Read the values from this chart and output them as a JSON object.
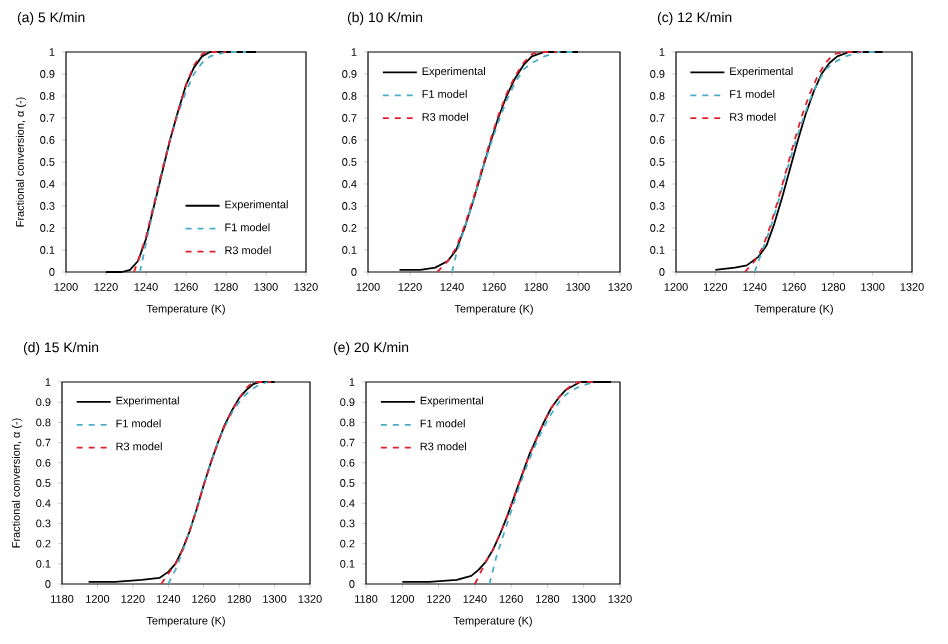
{
  "chart_data": [
    {
      "type": "line",
      "title": "(a) 5 K/min",
      "xlabel": "Temperature (K)",
      "ylabel": "Fractional conversion, α (-)",
      "xlim": [
        1200,
        1320
      ],
      "xticks": [
        1200,
        1220,
        1240,
        1260,
        1280,
        1300,
        1320
      ],
      "ylim": [
        0,
        1
      ],
      "yticks": [
        0,
        0.1,
        0.2,
        0.3,
        0.4,
        0.5,
        0.6,
        0.7,
        0.8,
        0.9,
        1
      ],
      "legend": "bottom right",
      "series": [
        {
          "name": "Experimental",
          "color": "#000000",
          "line_style": "solid",
          "x": [
            1220,
            1228,
            1232,
            1236,
            1240,
            1244,
            1248,
            1252,
            1256,
            1260,
            1264,
            1268,
            1272,
            1295
          ],
          "values": [
            0,
            0,
            0.01,
            0.05,
            0.15,
            0.3,
            0.45,
            0.6,
            0.73,
            0.85,
            0.93,
            0.98,
            1,
            1
          ]
        },
        {
          "name": "F1 model",
          "color": "#4bacc6",
          "line_style": "dashed",
          "x": [
            1237,
            1240,
            1244,
            1248,
            1252,
            1256,
            1260,
            1264,
            1268,
            1272,
            1280,
            1290
          ],
          "values": [
            0,
            0.13,
            0.3,
            0.46,
            0.6,
            0.72,
            0.82,
            0.9,
            0.95,
            0.98,
            1,
            1
          ]
        },
        {
          "name": "R3 model",
          "color": "#e0202e",
          "line_style": "dashed",
          "x": [
            1234,
            1236,
            1240,
            1244,
            1248,
            1252,
            1256,
            1260,
            1264,
            1268,
            1270,
            1280
          ],
          "values": [
            0,
            0.05,
            0.16,
            0.31,
            0.46,
            0.6,
            0.73,
            0.85,
            0.94,
            0.99,
            1,
            1
          ]
        }
      ]
    },
    {
      "type": "line",
      "title": "(b) 10 K/min",
      "xlabel": "Temperature (K)",
      "xlim": [
        1200,
        1320
      ],
      "xticks": [
        1200,
        1220,
        1240,
        1260,
        1280,
        1300,
        1320
      ],
      "ylim": [
        0,
        1
      ],
      "yticks": [
        0,
        0.1,
        0.2,
        0.3,
        0.4,
        0.5,
        0.6,
        0.7,
        0.8,
        0.9,
        1
      ],
      "legend": "top left",
      "series": [
        {
          "name": "Experimental",
          "color": "#000000",
          "line_style": "solid",
          "x": [
            1215,
            1225,
            1232,
            1238,
            1242,
            1246,
            1250,
            1254,
            1258,
            1262,
            1266,
            1270,
            1274,
            1278,
            1284,
            1300
          ],
          "values": [
            0.01,
            0.01,
            0.02,
            0.05,
            0.1,
            0.2,
            0.32,
            0.45,
            0.58,
            0.7,
            0.8,
            0.88,
            0.94,
            0.98,
            1,
            1
          ]
        },
        {
          "name": "F1 model",
          "color": "#4bacc6",
          "line_style": "dashed",
          "x": [
            1240,
            1242,
            1246,
            1250,
            1254,
            1258,
            1262,
            1266,
            1270,
            1274,
            1278,
            1284,
            1290,
            1298
          ],
          "values": [
            0,
            0.08,
            0.2,
            0.32,
            0.45,
            0.57,
            0.68,
            0.78,
            0.86,
            0.92,
            0.95,
            0.98,
            1,
            1
          ]
        },
        {
          "name": "R3 model",
          "color": "#e0202e",
          "line_style": "dashed",
          "x": [
            1233,
            1238,
            1242,
            1246,
            1250,
            1254,
            1258,
            1262,
            1266,
            1270,
            1274,
            1278,
            1282,
            1290
          ],
          "values": [
            0,
            0.05,
            0.11,
            0.21,
            0.33,
            0.46,
            0.59,
            0.71,
            0.81,
            0.89,
            0.95,
            0.99,
            1,
            1
          ]
        }
      ]
    },
    {
      "type": "line",
      "title": "(c) 12 K/min",
      "xlabel": "Temperature (K)",
      "xlim": [
        1200,
        1320
      ],
      "xticks": [
        1200,
        1220,
        1240,
        1260,
        1280,
        1300,
        1320
      ],
      "ylim": [
        0,
        1
      ],
      "yticks": [
        0,
        0.1,
        0.2,
        0.3,
        0.4,
        0.5,
        0.6,
        0.7,
        0.8,
        0.9,
        1
      ],
      "legend": "top left",
      "series": [
        {
          "name": "Experimental",
          "color": "#000000",
          "line_style": "solid",
          "x": [
            1220,
            1230,
            1236,
            1242,
            1246,
            1250,
            1254,
            1258,
            1262,
            1266,
            1270,
            1274,
            1278,
            1282,
            1288,
            1305
          ],
          "values": [
            0.01,
            0.02,
            0.03,
            0.07,
            0.12,
            0.22,
            0.34,
            0.47,
            0.6,
            0.72,
            0.82,
            0.9,
            0.95,
            0.98,
            1,
            1
          ]
        },
        {
          "name": "F1 model",
          "color": "#4bacc6",
          "line_style": "dashed",
          "x": [
            1240,
            1244,
            1248,
            1252,
            1256,
            1260,
            1264,
            1268,
            1272,
            1276,
            1280,
            1286,
            1294,
            1302
          ],
          "values": [
            0,
            0.1,
            0.2,
            0.32,
            0.45,
            0.57,
            0.68,
            0.78,
            0.86,
            0.92,
            0.95,
            0.98,
            1,
            1
          ]
        },
        {
          "name": "R3 model",
          "color": "#e0202e",
          "line_style": "dashed",
          "x": [
            1235,
            1240,
            1244,
            1248,
            1252,
            1256,
            1260,
            1264,
            1268,
            1272,
            1276,
            1280,
            1286,
            1294
          ],
          "values": [
            0,
            0.05,
            0.11,
            0.21,
            0.33,
            0.46,
            0.59,
            0.71,
            0.81,
            0.89,
            0.95,
            0.99,
            1,
            1
          ]
        }
      ]
    },
    {
      "type": "line",
      "title": "(d) 15 K/min",
      "xlabel": "Temperature (K)",
      "ylabel": "Fractional conversion, α (-)",
      "xlim": [
        1180,
        1320
      ],
      "xticks": [
        1180,
        1200,
        1220,
        1240,
        1260,
        1280,
        1300,
        1320
      ],
      "ylim": [
        0,
        1
      ],
      "yticks": [
        0,
        0.1,
        0.2,
        0.3,
        0.4,
        0.5,
        0.6,
        0.7,
        0.8,
        0.9,
        1
      ],
      "legend": "top left",
      "series": [
        {
          "name": "Experimental",
          "color": "#000000",
          "line_style": "solid",
          "x": [
            1195,
            1210,
            1225,
            1235,
            1240,
            1244,
            1248,
            1252,
            1256,
            1260,
            1264,
            1268,
            1272,
            1276,
            1280,
            1284,
            1288,
            1292,
            1300
          ],
          "values": [
            0.01,
            0.01,
            0.02,
            0.03,
            0.06,
            0.1,
            0.17,
            0.26,
            0.37,
            0.49,
            0.6,
            0.7,
            0.79,
            0.86,
            0.92,
            0.96,
            0.99,
            1,
            1
          ]
        },
        {
          "name": "F1 model",
          "color": "#4bacc6",
          "line_style": "dashed",
          "x": [
            1240,
            1244,
            1248,
            1252,
            1256,
            1260,
            1264,
            1268,
            1272,
            1276,
            1280,
            1284,
            1290,
            1296
          ],
          "values": [
            0,
            0.07,
            0.16,
            0.26,
            0.37,
            0.49,
            0.6,
            0.7,
            0.78,
            0.85,
            0.9,
            0.94,
            0.98,
            1
          ]
        },
        {
          "name": "R3 model",
          "color": "#e0202e",
          "line_style": "dashed",
          "x": [
            1236,
            1240,
            1244,
            1248,
            1252,
            1256,
            1260,
            1264,
            1268,
            1272,
            1276,
            1280,
            1284,
            1288,
            1292,
            1298
          ],
          "values": [
            0,
            0.05,
            0.1,
            0.17,
            0.26,
            0.37,
            0.49,
            0.6,
            0.7,
            0.79,
            0.86,
            0.92,
            0.97,
            1,
            1,
            1
          ]
        }
      ]
    },
    {
      "type": "line",
      "title": "(e) 20 K/min",
      "xlabel": "Temperature (K)",
      "xlim": [
        1180,
        1320
      ],
      "xticks": [
        1180,
        1200,
        1220,
        1240,
        1260,
        1280,
        1300,
        1320
      ],
      "ylim": [
        0,
        1
      ],
      "yticks": [
        0,
        0.1,
        0.2,
        0.3,
        0.4,
        0.5,
        0.6,
        0.7,
        0.8,
        0.9,
        1
      ],
      "legend": "top left",
      "series": [
        {
          "name": "Experimental",
          "color": "#000000",
          "line_style": "solid",
          "x": [
            1200,
            1215,
            1230,
            1238,
            1242,
            1246,
            1250,
            1254,
            1258,
            1262,
            1266,
            1270,
            1274,
            1278,
            1282,
            1286,
            1290,
            1294,
            1298,
            1315
          ],
          "values": [
            0.01,
            0.01,
            0.02,
            0.04,
            0.07,
            0.11,
            0.17,
            0.25,
            0.34,
            0.44,
            0.54,
            0.64,
            0.72,
            0.8,
            0.87,
            0.92,
            0.96,
            0.98,
            1,
            1
          ]
        },
        {
          "name": "F1 model",
          "color": "#4bacc6",
          "line_style": "dashed",
          "x": [
            1248,
            1252,
            1256,
            1260,
            1264,
            1268,
            1272,
            1276,
            1280,
            1284,
            1288,
            1292,
            1298,
            1306
          ],
          "values": [
            0,
            0.14,
            0.25,
            0.36,
            0.47,
            0.57,
            0.66,
            0.74,
            0.81,
            0.87,
            0.92,
            0.95,
            0.98,
            1
          ]
        },
        {
          "name": "R3 model",
          "color": "#e0202e",
          "line_style": "dashed",
          "x": [
            1240,
            1246,
            1250,
            1254,
            1258,
            1262,
            1266,
            1270,
            1274,
            1278,
            1282,
            1286,
            1290,
            1294,
            1298,
            1306
          ],
          "values": [
            0,
            0.11,
            0.17,
            0.25,
            0.34,
            0.44,
            0.54,
            0.64,
            0.72,
            0.8,
            0.87,
            0.92,
            0.96,
            0.99,
            1,
            1
          ]
        }
      ]
    }
  ]
}
